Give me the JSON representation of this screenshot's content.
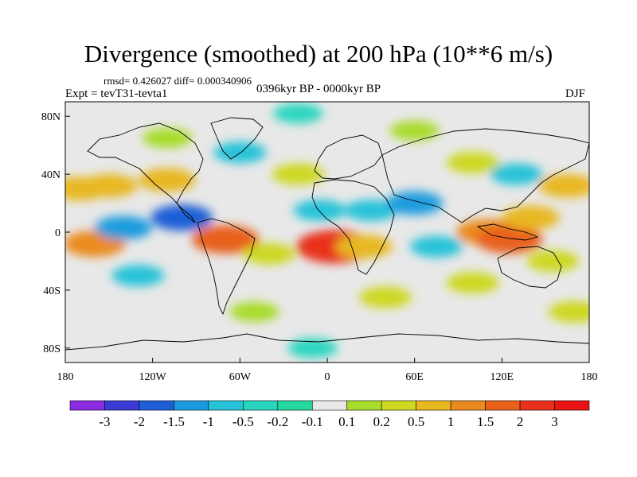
{
  "header": {
    "title": "Divergence (smoothed) at 200 hPa (10**6 m/s)",
    "stats": "rmsd= 0.426027 diff= 0.000340906",
    "experiment": "Expt = tevT31-tevta1",
    "period": "0396kyr BP - 0000kyr BP",
    "season": "DJF"
  },
  "chart_data": {
    "type": "heatmap",
    "title": "Divergence (smoothed) at 200 hPa (10**6 m/s)",
    "projection": "cylindrical-equidistant",
    "xlim": [
      -180,
      180
    ],
    "ylim": [
      -90,
      90
    ],
    "x_ticks": [
      {
        "value": -180,
        "label": "180"
      },
      {
        "value": -120,
        "label": "120W"
      },
      {
        "value": -60,
        "label": "60W"
      },
      {
        "value": 0,
        "label": "0"
      },
      {
        "value": 60,
        "label": "60E"
      },
      {
        "value": 120,
        "label": "120E"
      },
      {
        "value": 180,
        "label": "180"
      }
    ],
    "y_ticks": [
      {
        "value": 80,
        "label": "80N"
      },
      {
        "value": 40,
        "label": "40N"
      },
      {
        "value": 0,
        "label": "0"
      },
      {
        "value": -40,
        "label": "40S"
      },
      {
        "value": -80,
        "label": "80S"
      }
    ],
    "colorbar": {
      "labels": [
        "-3",
        "-2",
        "-1.5",
        "-1",
        "-0.5",
        "-0.2",
        "-0.1",
        "0.1",
        "0.2",
        "0.5",
        "1",
        "1.5",
        "2",
        "3"
      ],
      "colors": [
        "#8a2be2",
        "#3b3bd6",
        "#1f5fd6",
        "#1a9bde",
        "#26c2d8",
        "#2ad5c0",
        "#25d8a0",
        "#e8e8e8",
        "#a8dc2a",
        "#cdd820",
        "#e8b820",
        "#ea8a1e",
        "#e8601a",
        "#e8301a",
        "#e81414"
      ]
    },
    "blobs": [
      {
        "lon": -170,
        "lat": 30,
        "value": 1.0
      },
      {
        "lon": -150,
        "lat": 32,
        "value": 1.0
      },
      {
        "lon": -110,
        "lat": 36,
        "value": 1.0
      },
      {
        "lon": -60,
        "lat": 55,
        "value": -0.5
      },
      {
        "lon": -20,
        "lat": 40,
        "value": 0.5
      },
      {
        "lon": -5,
        "lat": 15,
        "value": -0.5
      },
      {
        "lon": 30,
        "lat": 15,
        "value": -0.5
      },
      {
        "lon": 60,
        "lat": 20,
        "value": -1.0
      },
      {
        "lon": 100,
        "lat": 48,
        "value": 0.5
      },
      {
        "lon": 130,
        "lat": 40,
        "value": -0.5
      },
      {
        "lon": 165,
        "lat": 32,
        "value": 1.0
      },
      {
        "lon": -100,
        "lat": 10,
        "value": -1.5
      },
      {
        "lon": -160,
        "lat": -8,
        "value": 1.5
      },
      {
        "lon": -140,
        "lat": 3,
        "value": -1.0
      },
      {
        "lon": -70,
        "lat": -5,
        "value": 2.0
      },
      {
        "lon": -40,
        "lat": -15,
        "value": 0.5
      },
      {
        "lon": 5,
        "lat": -10,
        "value": 3.0
      },
      {
        "lon": 25,
        "lat": -10,
        "value": 1.0
      },
      {
        "lon": 75,
        "lat": -10,
        "value": -0.5
      },
      {
        "lon": 110,
        "lat": 0,
        "value": 1.5
      },
      {
        "lon": 125,
        "lat": -5,
        "value": 2.0
      },
      {
        "lon": 140,
        "lat": 10,
        "value": 1.0
      },
      {
        "lon": 155,
        "lat": -20,
        "value": 0.5
      },
      {
        "lon": -130,
        "lat": -30,
        "value": -0.5
      },
      {
        "lon": -50,
        "lat": -55,
        "value": 0.2
      },
      {
        "lon": 40,
        "lat": -45,
        "value": 0.5
      },
      {
        "lon": 100,
        "lat": -35,
        "value": 0.5
      },
      {
        "lon": 170,
        "lat": -55,
        "value": 0.5
      },
      {
        "lon": -20,
        "lat": 82,
        "value": -0.2
      },
      {
        "lon": -110,
        "lat": 65,
        "value": 0.2
      },
      {
        "lon": 60,
        "lat": 70,
        "value": 0.2
      },
      {
        "lon": -10,
        "lat": -80,
        "value": -0.2
      }
    ]
  }
}
